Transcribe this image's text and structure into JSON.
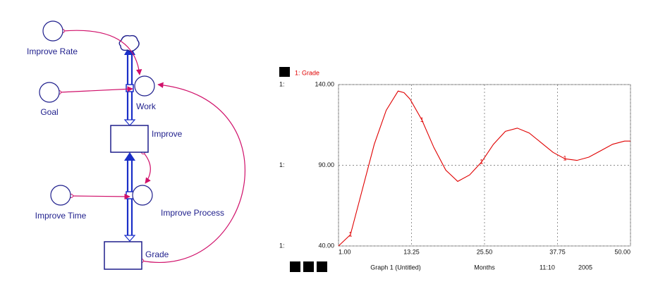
{
  "diagram": {
    "nodes": [
      {
        "label": "Improve Rate"
      },
      {
        "label": "Goal"
      },
      {
        "label": "Work"
      },
      {
        "label": "Improve"
      },
      {
        "label": "Improve Time"
      },
      {
        "label": "Improve Process"
      },
      {
        "label": "Grade"
      }
    ]
  },
  "chart_data": {
    "type": "line",
    "x_label": "Months",
    "graph_name": "Graph 1 (Untitled)",
    "axis_prefix": "1:",
    "marker": "1",
    "footer": [
      "11:10",
      "2005"
    ],
    "x": [
      1,
      3,
      5,
      7,
      9,
      11,
      12,
      13,
      15,
      17,
      19,
      21,
      23,
      25,
      27,
      29,
      31,
      33,
      35,
      37,
      39,
      41,
      43,
      45,
      47,
      49,
      50
    ],
    "series": [
      {
        "name": "1: Grade",
        "color": "#e00000",
        "values": [
          40,
          47,
          75,
          103,
          124,
          136,
          135,
          131,
          118,
          101,
          87,
          80,
          84,
          92,
          103,
          111,
          113,
          110,
          104,
          98,
          94,
          93,
          95,
          99,
          103,
          105,
          105
        ]
      }
    ],
    "xlim": [
      1,
      50
    ],
    "xticks": [
      {
        "value": 1,
        "label": "1.00"
      },
      {
        "value": 13.25,
        "label": "13.25"
      },
      {
        "value": 25.5,
        "label": "25.50"
      },
      {
        "value": 37.75,
        "label": "37.75"
      },
      {
        "value": 50,
        "label": "50.00"
      }
    ],
    "ylim": [
      40,
      140
    ],
    "yticks": [
      {
        "value": 40,
        "label": "40.00"
      },
      {
        "value": 90,
        "label": "90.00"
      },
      {
        "value": 140,
        "label": "140.00"
      }
    ],
    "grid": true
  }
}
